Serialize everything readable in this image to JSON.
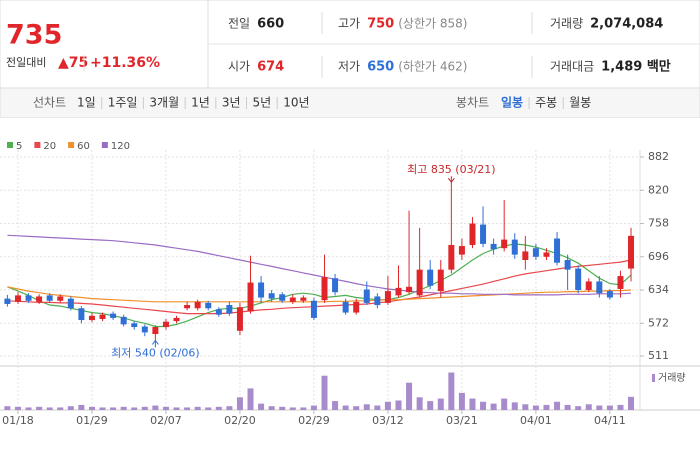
{
  "header": {
    "price": "735",
    "change_label": "전일대비",
    "change": "▲75",
    "change_pct": "+11.36%",
    "stats": [
      {
        "label": "전일",
        "value": "660",
        "color": "#222222"
      },
      {
        "label": "고가",
        "value": "750",
        "color": "#e0262b",
        "note": "(상한가 858)"
      },
      {
        "label": "거래량",
        "value": "2,074,084",
        "color": "#222222"
      },
      {
        "label": "시가",
        "value": "674",
        "color": "#e0262b"
      },
      {
        "label": "저가",
        "value": "650",
        "color": "#2f6fd6",
        "note": "(하한가 462)"
      },
      {
        "label": "거래대금",
        "value": "1,489 백만",
        "color": "#222222"
      }
    ]
  },
  "tabs": {
    "line": {
      "label": "선차트",
      "items": [
        "1일",
        "1주일",
        "3개월",
        "1년",
        "3년",
        "5년",
        "10년"
      ]
    },
    "candle": {
      "label": "봉차트",
      "items": [
        "일봉",
        "주봉",
        "월봉"
      ],
      "selected": "일봉"
    }
  },
  "chart_data": {
    "type": "candlestick",
    "grid": true,
    "categories": [
      null,
      "01/18",
      null,
      null,
      null,
      null,
      null,
      null,
      "01/29",
      null,
      null,
      null,
      null,
      null,
      null,
      "02/07",
      null,
      null,
      null,
      null,
      null,
      null,
      "02/20",
      null,
      null,
      null,
      null,
      null,
      null,
      "02/29",
      null,
      null,
      null,
      null,
      null,
      null,
      "03/12",
      null,
      null,
      null,
      null,
      null,
      null,
      "03/21",
      null,
      null,
      null,
      null,
      null,
      null,
      "04/01",
      null,
      null,
      null,
      null,
      null,
      null,
      "04/11",
      null,
      null
    ],
    "open": [
      618,
      612,
      624,
      612,
      624,
      614,
      618,
      600,
      578,
      580,
      590,
      584,
      572,
      566,
      552,
      565,
      576,
      600,
      600,
      610,
      598,
      606,
      558,
      594,
      648,
      628,
      626,
      612,
      614,
      614,
      615,
      656,
      612,
      592,
      635,
      622,
      610,
      624,
      630,
      624,
      672,
      632,
      672,
      700,
      718,
      756,
      720,
      712,
      728,
      690,
      712,
      696,
      730,
      690,
      674,
      634,
      650,
      632,
      636,
      674
    ],
    "high": [
      625,
      630,
      628,
      626,
      628,
      626,
      622,
      604,
      592,
      592,
      594,
      588,
      576,
      570,
      568,
      580,
      586,
      612,
      616,
      614,
      602,
      612,
      610,
      698,
      660,
      634,
      630,
      626,
      624,
      620,
      700,
      664,
      618,
      618,
      650,
      628,
      660,
      680,
      782,
      750,
      690,
      690,
      835,
      730,
      770,
      790,
      730,
      802,
      740,
      735,
      720,
      712,
      742,
      700,
      680,
      656,
      660,
      636,
      670,
      750
    ],
    "low": [
      603,
      608,
      610,
      608,
      610,
      610,
      596,
      572,
      574,
      576,
      578,
      566,
      560,
      548,
      540,
      560,
      572,
      596,
      596,
      596,
      584,
      586,
      550,
      590,
      610,
      612,
      610,
      608,
      610,
      578,
      610,
      624,
      588,
      588,
      606,
      600,
      606,
      620,
      626,
      620,
      636,
      620,
      665,
      690,
      712,
      714,
      700,
      706,
      692,
      672,
      690,
      690,
      680,
      634,
      628,
      630,
      620,
      616,
      620,
      650
    ],
    "close": [
      608,
      624,
      614,
      622,
      614,
      622,
      600,
      578,
      586,
      588,
      582,
      570,
      565,
      555,
      565,
      575,
      582,
      606,
      612,
      600,
      588,
      590,
      602,
      648,
      620,
      618,
      614,
      620,
      620,
      582,
      658,
      630,
      592,
      612,
      610,
      606,
      632,
      638,
      640,
      672,
      642,
      672,
      718,
      716,
      758,
      720,
      710,
      728,
      700,
      706,
      696,
      704,
      685,
      672,
      634,
      650,
      628,
      620,
      660,
      735
    ],
    "colors": {
      "up": "#e0262b",
      "down": "#2f6fd6"
    },
    "ylim": [
      511,
      882
    ],
    "yticks": [
      511,
      572,
      634,
      696,
      758,
      820,
      882
    ],
    "ma": [
      {
        "name": "5",
        "color": "#4caf50",
        "values": [
          640,
          632,
          624,
          614,
          606,
          604,
          600,
          596,
          592,
          590,
          586,
          582,
          576,
          572,
          566,
          566,
          570,
          576,
          584,
          592,
          598,
          600,
          600,
          604,
          610,
          616,
          620,
          626,
          628,
          626,
          620,
          622,
          624,
          620,
          618,
          616,
          616,
          620,
          626,
          634,
          642,
          652,
          662,
          676,
          690,
          702,
          710,
          716,
          720,
          718,
          714,
          708,
          702,
          694,
          684,
          670,
          656,
          646,
          644,
          662
        ]
      },
      {
        "name": "20",
        "color": "#e8474c",
        "values": [
          614,
          613,
          612,
          611,
          611,
          610,
          610,
          609,
          608,
          606,
          604,
          602,
          600,
          598,
          596,
          594,
          592,
          590,
          590,
          590,
          590,
          591,
          593,
          595,
          597,
          598,
          600,
          601,
          602,
          603,
          604,
          605,
          606,
          607,
          608,
          610,
          612,
          615,
          618,
          621,
          625,
          629,
          633,
          637,
          641,
          645,
          650,
          655,
          660,
          664,
          667,
          670,
          673,
          676,
          678,
          680,
          682,
          684,
          686,
          690
        ]
      },
      {
        "name": "60",
        "color": "#f0902a",
        "values": [
          640,
          636,
          632,
          629,
          626,
          624,
          622,
          620,
          618,
          617,
          616,
          615,
          614,
          613,
          612,
          612,
          612,
          612,
          612,
          612,
          612,
          612,
          612,
          612,
          612,
          612,
          612,
          612,
          612,
          612,
          612,
          613,
          613,
          614,
          614,
          615,
          616,
          616,
          617,
          618,
          619,
          620,
          621,
          622,
          623,
          624,
          625,
          626,
          627,
          628,
          629,
          630,
          630,
          631,
          631,
          632,
          632,
          633,
          633,
          634
        ]
      },
      {
        "name": "120",
        "color": "#9b6cc4",
        "values": [
          736,
          735,
          734,
          733,
          732,
          731,
          730,
          729,
          728,
          727,
          726,
          724,
          722,
          720,
          718,
          715,
          712,
          709,
          706,
          702,
          698,
          694,
          690,
          686,
          682,
          678,
          674,
          670,
          666,
          662,
          658,
          654,
          650,
          646,
          642,
          639,
          636,
          634,
          632,
          630,
          629,
          628,
          628,
          627,
          627,
          626,
          626,
          626,
          625,
          625,
          625,
          625,
          625,
          626,
          626,
          626,
          627,
          627,
          627,
          628
        ]
      }
    ],
    "volume": {
      "name": "거래량",
      "color": "#a88bcb",
      "ylim": [
        0,
        6300000
      ],
      "values": [
        600000,
        500000,
        400000,
        500000,
        400000,
        400000,
        600000,
        800000,
        500000,
        400000,
        400000,
        500000,
        400000,
        500000,
        700000,
        500000,
        400000,
        400000,
        500000,
        400000,
        500000,
        600000,
        2000000,
        3400000,
        1000000,
        600000,
        500000,
        400000,
        400000,
        700000,
        5400000,
        1400000,
        700000,
        600000,
        900000,
        700000,
        1300000,
        1500000,
        4300000,
        2000000,
        1400000,
        1800000,
        5900000,
        2700000,
        1800000,
        1300000,
        1000000,
        1800000,
        1200000,
        900000,
        700000,
        800000,
        1300000,
        800000,
        600000,
        900000,
        700000,
        700000,
        800000,
        2074084
      ]
    },
    "annotations": [
      {
        "text": "최고 835 (03/21)",
        "index": 42,
        "value": 835,
        "color": "#c62828"
      },
      {
        "text": "최저 540 (02/06)",
        "index": 14,
        "value": 540,
        "color": "#2f6fd6"
      }
    ]
  }
}
